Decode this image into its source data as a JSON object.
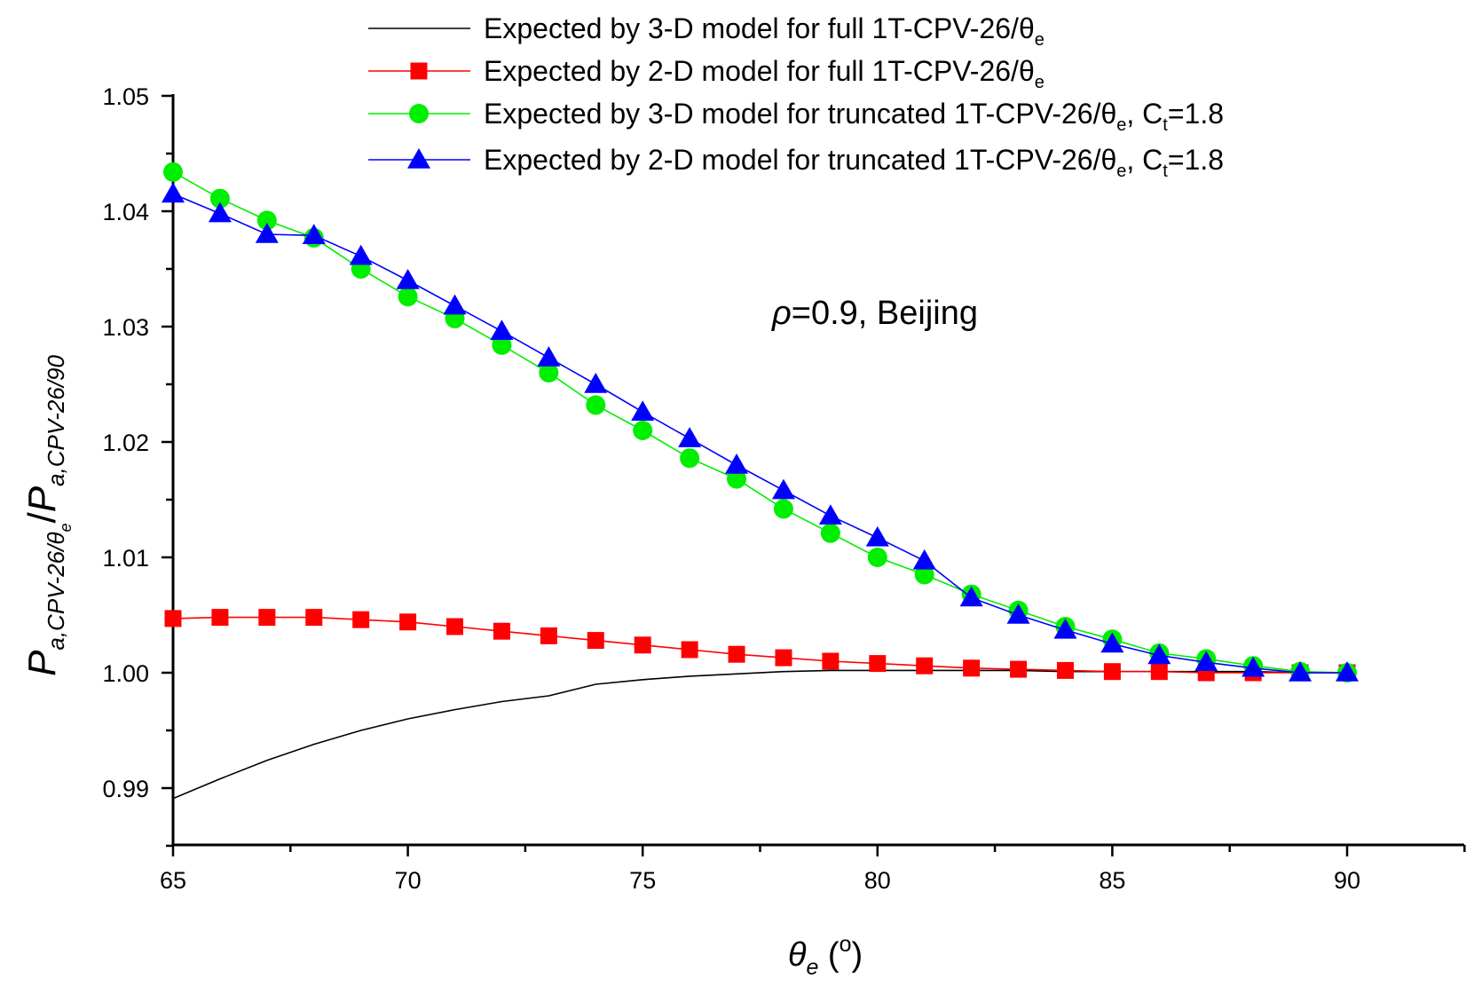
{
  "chart_data": {
    "type": "line",
    "title": "",
    "annotation": {
      "symbol": "ρ",
      "text": "=0.9, Beijing"
    },
    "xlabel": {
      "symbol": "θ",
      "sub": "e",
      "open": " (",
      "sup": "o",
      "close": ")"
    },
    "ylabel": {
      "p1": "P",
      "sub1": "a,CPV-26/θ",
      "sub1sub": "e",
      "slash": "/",
      "p2": "P",
      "sub2": "a,CPV-26/90"
    },
    "xlim": [
      65,
      92.5
    ],
    "ylim": [
      0.985,
      1.05
    ],
    "x_ticks": [
      "65",
      "70",
      "75",
      "80",
      "85",
      "90"
    ],
    "x_tick_values": [
      65,
      70,
      75,
      80,
      85,
      90
    ],
    "y_ticks": [
      "0.99",
      "1.00",
      "1.01",
      "1.02",
      "1.03",
      "1.04",
      "1.05"
    ],
    "y_tick_values": [
      0.99,
      1.0,
      1.01,
      1.02,
      1.03,
      1.04,
      1.05
    ],
    "legend_position": "top",
    "series": [
      {
        "name": "Expected by 3-D model for full 1T-CPV-26/θe",
        "label_main": "Expected by 3-D model for full 1T-CPV-26/θ",
        "label_sub": "e",
        "label_tail": "",
        "label_tail_sub": "",
        "label_tail_end": "",
        "color": "#000000",
        "marker": "none",
        "x": [
          65,
          66,
          67,
          68,
          69,
          70,
          71,
          72,
          73,
          74,
          75,
          76,
          77,
          78,
          79,
          80,
          81,
          82,
          83,
          84,
          85,
          86,
          87,
          88,
          89,
          90
        ],
        "values": [
          0.9891,
          0.9908,
          0.9924,
          0.9938,
          0.995,
          0.996,
          0.9968,
          0.9975,
          0.998,
          0.999,
          0.9994,
          0.9997,
          0.9999,
          1.0001,
          1.0002,
          1.0002,
          1.0002,
          1.0002,
          1.0002,
          1.0001,
          1.0001,
          1.0001,
          1.0001,
          1.0001,
          1.0,
          1.0
        ]
      },
      {
        "name": "Expected by 2-D model for full 1T-CPV-26/θe",
        "label_main": "Expected by 2-D model for full 1T-CPV-26/θ",
        "label_sub": "e",
        "label_tail": "",
        "label_tail_sub": "",
        "label_tail_end": "",
        "color": "#ff0000",
        "marker": "square",
        "x": [
          65,
          66,
          67,
          68,
          69,
          70,
          71,
          72,
          73,
          74,
          75,
          76,
          77,
          78,
          79,
          80,
          81,
          82,
          83,
          84,
          85,
          86,
          87,
          88,
          89,
          90
        ],
        "values": [
          1.0047,
          1.0048,
          1.0048,
          1.0048,
          1.0046,
          1.0044,
          1.004,
          1.0036,
          1.0032,
          1.0028,
          1.0024,
          1.002,
          1.0016,
          1.0013,
          1.001,
          1.0008,
          1.0006,
          1.0004,
          1.0003,
          1.0002,
          1.0001,
          1.0001,
          1.0,
          1.0,
          1.0,
          1.0
        ]
      },
      {
        "name": "Expected by 3-D model for truncated 1T-CPV-26/θe, Ct=1.8",
        "label_main": "Expected by 3-D model for truncated 1T-CPV-26/θ",
        "label_sub": "e",
        "label_tail": ", C",
        "label_tail_sub": "t",
        "label_tail_end": "=1.8",
        "color": "#00ee00",
        "marker": "circle",
        "x": [
          65,
          66,
          67,
          68,
          69,
          70,
          71,
          72,
          73,
          74,
          75,
          76,
          77,
          78,
          79,
          80,
          81,
          82,
          83,
          84,
          85,
          86,
          87,
          88,
          89,
          90
        ],
        "values": [
          1.0434,
          1.0411,
          1.0392,
          1.0377,
          1.035,
          1.0326,
          1.0307,
          1.0284,
          1.026,
          1.0232,
          1.021,
          1.0186,
          1.0168,
          1.0142,
          1.0121,
          1.01,
          1.0085,
          1.0068,
          1.0054,
          1.004,
          1.0029,
          1.0017,
          1.0012,
          1.0006,
          1.0001,
          1.0
        ]
      },
      {
        "name": "Expected by 2-D model for truncated 1T-CPV-26/θe, Ct=1.8",
        "label_main": "Expected by 2-D model for truncated 1T-CPV-26/θ",
        "label_sub": "e",
        "label_tail": ", C",
        "label_tail_sub": "t",
        "label_tail_end": "=1.8",
        "color": "#0000ff",
        "marker": "triangle",
        "x": [
          65,
          66,
          67,
          68,
          69,
          70,
          71,
          72,
          73,
          74,
          75,
          76,
          77,
          78,
          79,
          80,
          81,
          82,
          83,
          84,
          85,
          86,
          87,
          88,
          89,
          90
        ],
        "values": [
          1.0415,
          1.0398,
          1.038,
          1.0379,
          1.0361,
          1.034,
          1.0318,
          1.0296,
          1.0273,
          1.025,
          1.0226,
          1.0203,
          1.018,
          1.0158,
          1.0136,
          1.0117,
          1.0097,
          1.0065,
          1.005,
          1.0037,
          1.0025,
          1.0015,
          1.0009,
          1.0004,
          1.0,
          1.0
        ]
      }
    ]
  }
}
